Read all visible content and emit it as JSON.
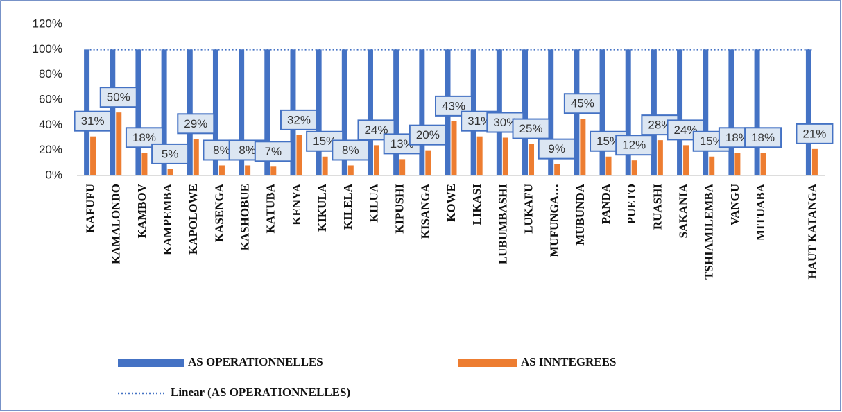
{
  "chart_data": {
    "type": "bar",
    "categories": [
      "KAFUFU",
      "KAMALONDO",
      "KAMBOV",
      "KAMPEMBA",
      "KAPOLOWE",
      "KASENGA",
      "KASHOBUE",
      "KATUBA",
      "KENYA",
      "KIKULA",
      "KILELA",
      "KILUA",
      "KIPUSHI",
      "KISANGA",
      "KOWE",
      "LIKASI",
      "LUBUMBASHI",
      "LUKAFU",
      "MUFUNGA…",
      "MUBUNDA",
      "PANDA",
      "PUETO",
      "RUASHI",
      "SAKANIA",
      "TSHIAMILEMBA",
      "VANGU",
      "MITUABA",
      null,
      "HAUT KATANGA"
    ],
    "series": [
      {
        "name": "AS OPERATIONNELLES",
        "color": "#4472c4",
        "values": [
          100,
          100,
          100,
          100,
          100,
          100,
          100,
          100,
          100,
          100,
          100,
          100,
          100,
          100,
          100,
          100,
          100,
          100,
          100,
          100,
          100,
          100,
          100,
          100,
          100,
          100,
          100,
          null,
          100
        ]
      },
      {
        "name": "AS INNTEGREES",
        "color": "#ed7d31",
        "values": [
          31,
          50,
          18,
          5,
          29,
          8,
          8,
          7,
          32,
          15,
          8,
          24,
          13,
          20,
          43,
          31,
          30,
          25,
          9,
          45,
          15,
          12,
          28,
          24,
          15,
          18,
          18,
          null,
          21
        ],
        "value_labels": [
          "31%",
          "50%",
          "18%",
          "5%",
          "29%",
          "8%",
          "8%",
          "7%",
          "32%",
          "15%",
          "8%",
          "24%",
          "13%",
          "20%",
          "43%",
          "31%",
          "30%",
          "25%",
          "9%",
          "45%",
          "15%",
          "12%",
          "28%",
          "24%",
          "15%",
          "18%",
          "18%",
          null,
          "21%"
        ]
      }
    ],
    "trendline": {
      "name": "Linear (AS OPERATIONNELLES)",
      "color": "#4472c4",
      "of": 0
    },
    "ylim": [
      0,
      120
    ],
    "yticks": [
      {
        "value": 0,
        "label": "0%"
      },
      {
        "value": 20,
        "label": "20%"
      },
      {
        "value": 40,
        "label": "40%"
      },
      {
        "value": 60,
        "label": "60%"
      },
      {
        "value": 80,
        "label": "80%"
      },
      {
        "value": 100,
        "label": "100%"
      },
      {
        "value": 120,
        "label": "120%"
      }
    ],
    "grid": false
  }
}
